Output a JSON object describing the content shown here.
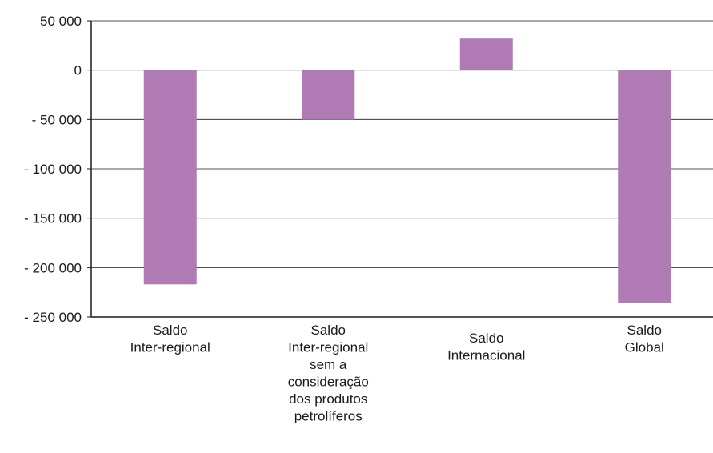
{
  "chart_data": {
    "type": "bar",
    "title": "",
    "xlabel": "",
    "ylabel": "",
    "categories": [
      [
        "Saldo",
        "Inter-regional"
      ],
      [
        "Saldo",
        "Inter-regional",
        "sem a",
        "consideração",
        "dos produtos",
        "petrolíferos"
      ],
      [
        "Saldo",
        "Internacional"
      ],
      [
        "Saldo",
        "Global"
      ]
    ],
    "values": [
      -217000,
      -50000,
      32000,
      -236000
    ],
    "ylim": [
      -250000,
      50000
    ],
    "yticks": [
      50000,
      0,
      -50000,
      -100000,
      -150000,
      -200000,
      -250000
    ],
    "ytick_labels": [
      "50 000",
      "0",
      "- 50 000",
      "- 100 000",
      "- 150 000",
      "- 200 000",
      "- 250 000"
    ],
    "grid": true,
    "legend": "none",
    "colors": {
      "bar": "#b07ab4",
      "axis": "#1a1a1a",
      "grid": "#1a1a1a"
    }
  }
}
